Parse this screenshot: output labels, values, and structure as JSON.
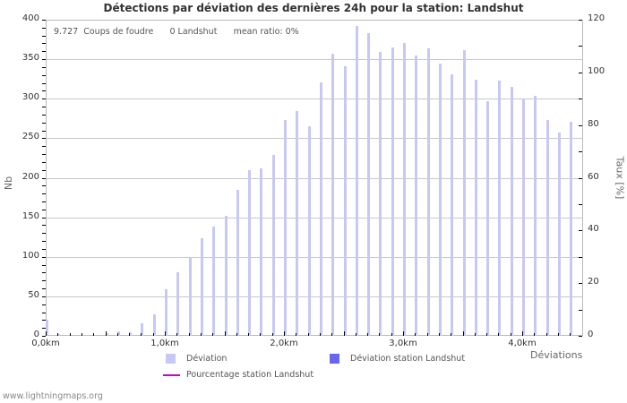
{
  "chart_data": {
    "type": "bar",
    "title": "Détections par déviation des dernières 24h pour la station: Landshut",
    "xlabel": "Déviations",
    "ylabel": "Nb",
    "ylabel_right": "Taux [%]",
    "ylim": [
      0,
      400
    ],
    "ylim_right": [
      0,
      120
    ],
    "y_ticks": [
      0,
      50,
      100,
      150,
      200,
      250,
      300,
      350,
      400
    ],
    "y_ticks_right": [
      0,
      20,
      40,
      60,
      80,
      100,
      120
    ],
    "x_tick_labels": [
      "0,0km",
      "1,0km",
      "2,0km",
      "3,0km",
      "4,0km"
    ],
    "bin_width_km": 0.1,
    "categories": [
      "0.0",
      "0.1",
      "0.2",
      "0.3",
      "0.4",
      "0.5",
      "0.6",
      "0.7",
      "0.8",
      "0.9",
      "1.0",
      "1.1",
      "1.2",
      "1.3",
      "1.4",
      "1.5",
      "1.6",
      "1.7",
      "1.8",
      "1.9",
      "2.0",
      "2.1",
      "2.2",
      "2.3",
      "2.4",
      "2.5",
      "2.6",
      "2.7",
      "2.8",
      "2.9",
      "3.0",
      "3.1",
      "3.2",
      "3.3",
      "3.4",
      "3.5",
      "3.6",
      "3.7",
      "3.8",
      "3.9",
      "4.0",
      "4.1",
      "4.2",
      "4.3",
      "4.4"
    ],
    "series": [
      {
        "name": "Déviation",
        "color": "#c8c8f5",
        "values": [
          20,
          2,
          0,
          1,
          0,
          3,
          6,
          5,
          16,
          27,
          59,
          80,
          100,
          124,
          138,
          152,
          185,
          210,
          212,
          229,
          273,
          284,
          265,
          321,
          357,
          341,
          392,
          383,
          359,
          365,
          371,
          355,
          364,
          345,
          331,
          361,
          324,
          297,
          323,
          315,
          300,
          304,
          273,
          257,
          271
        ]
      },
      {
        "name": "Déviation station Landshut",
        "color": "#6666ee",
        "values": [
          0,
          0,
          0,
          0,
          0,
          0,
          0,
          0,
          0,
          0,
          0,
          0,
          0,
          0,
          0,
          0,
          0,
          0,
          0,
          0,
          0,
          0,
          0,
          0,
          0,
          0,
          0,
          0,
          0,
          0,
          0,
          0,
          0,
          0,
          0,
          0,
          0,
          0,
          0,
          0,
          0,
          0,
          0,
          0,
          0
        ]
      },
      {
        "name": "Pourcentage station Landshut",
        "color": "#cc00cc",
        "type": "line",
        "values": []
      }
    ],
    "grid": true,
    "legend_position": "bottom"
  },
  "info": {
    "strikes": "9.727  Coups de foudre",
    "station_count": "0 Landshut",
    "mean_ratio": "mean ratio: 0%"
  },
  "legend": {
    "deviation": "Déviation",
    "deviation_station": "Déviation station Landshut",
    "percentage_station": "Pourcentage station Landshut"
  },
  "footer": "www.lightningmaps.org"
}
